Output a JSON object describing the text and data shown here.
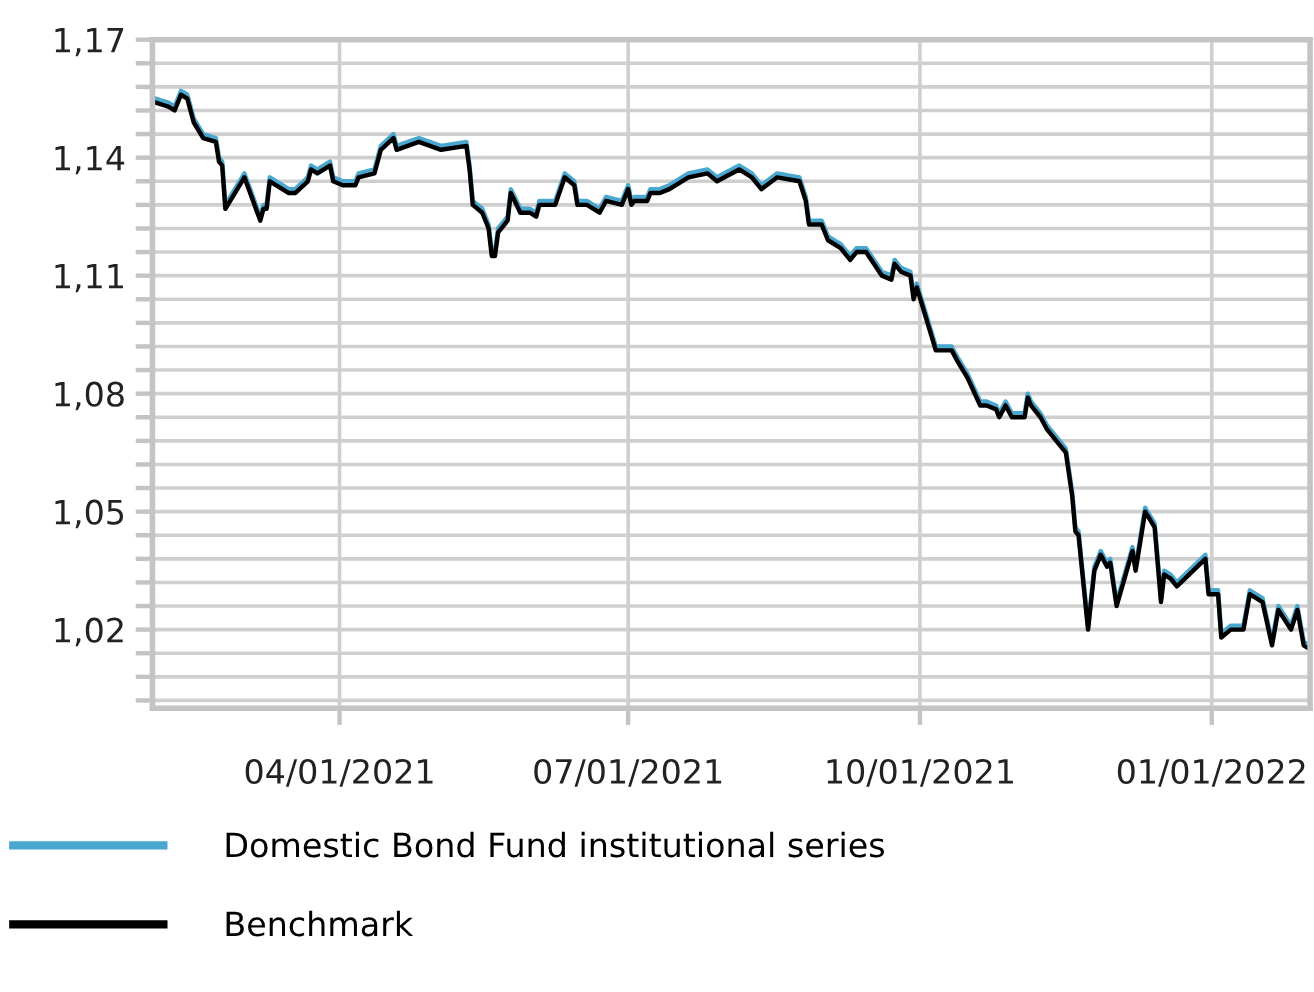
{
  "chart_data": {
    "type": "line",
    "x": [
      "2021-02-02",
      "2021-02-06",
      "2021-02-08",
      "2021-02-10",
      "2021-02-12",
      "2021-02-14",
      "2021-02-17",
      "2021-02-21",
      "2021-02-22",
      "2021-02-23",
      "2021-02-24",
      "2021-03-02",
      "2021-03-07",
      "2021-03-08",
      "2021-03-09",
      "2021-03-10",
      "2021-03-16",
      "2021-03-18",
      "2021-03-22",
      "2021-03-23",
      "2021-03-25",
      "2021-03-29",
      "2021-03-30",
      "2021-04-02",
      "2021-04-06",
      "2021-04-07",
      "2021-04-12",
      "2021-04-14",
      "2021-04-18",
      "2021-04-19",
      "2021-04-26",
      "2021-05-03",
      "2021-05-11",
      "2021-05-12",
      "2021-05-13",
      "2021-05-16",
      "2021-05-18",
      "2021-05-19",
      "2021-05-20",
      "2021-05-21",
      "2021-05-24",
      "2021-05-25",
      "2021-05-28",
      "2021-05-31",
      "2021-06-02",
      "2021-06-03",
      "2021-06-08",
      "2021-06-11",
      "2021-06-14",
      "2021-06-15",
      "2021-06-18",
      "2021-06-22",
      "2021-06-24",
      "2021-06-29",
      "2021-07-01",
      "2021-07-02",
      "2021-07-03",
      "2021-07-07",
      "2021-07-08",
      "2021-07-11",
      "2021-07-14",
      "2021-07-20",
      "2021-07-26",
      "2021-07-29",
      "2021-08-05",
      "2021-08-09",
      "2021-08-12",
      "2021-08-17",
      "2021-08-24",
      "2021-08-26",
      "2021-08-27",
      "2021-08-31",
      "2021-09-02",
      "2021-09-06",
      "2021-09-09",
      "2021-09-11",
      "2021-09-14",
      "2021-09-19",
      "2021-09-22",
      "2021-09-23",
      "2021-09-25",
      "2021-09-28",
      "2021-09-29",
      "2021-09-30",
      "2021-10-03",
      "2021-10-06",
      "2021-10-11",
      "2021-10-13",
      "2021-10-16",
      "2021-10-20",
      "2021-10-22",
      "2021-10-25",
      "2021-10-26",
      "2021-10-28",
      "2021-10-30",
      "2021-11-03",
      "2021-11-04",
      "2021-11-05",
      "2021-11-08",
      "2021-11-10",
      "2021-11-16",
      "2021-11-18",
      "2021-11-19",
      "2021-11-20",
      "2021-11-23",
      "2021-11-25",
      "2021-11-27",
      "2021-11-29",
      "2021-11-30",
      "2021-12-02",
      "2021-12-07",
      "2021-12-08",
      "2021-12-11",
      "2021-12-14",
      "2021-12-16",
      "2021-12-17",
      "2021-12-19",
      "2021-12-21",
      "2021-12-30",
      "2021-12-31",
      "2022-01-03",
      "2022-01-04",
      "2022-01-07",
      "2022-01-11",
      "2022-01-13",
      "2022-01-17",
      "2022-01-20",
      "2022-01-22",
      "2022-01-26",
      "2022-01-28",
      "2022-01-30",
      "2022-02-01"
    ],
    "series": [
      {
        "name": "Domestic Bond Fund institutional series",
        "color": "#4aa8d0",
        "values": [
          1.155,
          1.154,
          1.153,
          1.157,
          1.156,
          1.15,
          1.146,
          1.145,
          1.14,
          1.139,
          1.128,
          1.136,
          1.125,
          1.128,
          1.128,
          1.135,
          1.132,
          1.132,
          1.135,
          1.138,
          1.137,
          1.139,
          1.135,
          1.134,
          1.134,
          1.136,
          1.137,
          1.143,
          1.146,
          1.143,
          1.145,
          1.143,
          1.144,
          1.138,
          1.129,
          1.127,
          1.123,
          1.116,
          1.116,
          1.122,
          1.125,
          1.132,
          1.127,
          1.127,
          1.126,
          1.129,
          1.129,
          1.136,
          1.134,
          1.129,
          1.129,
          1.127,
          1.13,
          1.129,
          1.133,
          1.129,
          1.13,
          1.13,
          1.132,
          1.132,
          1.133,
          1.136,
          1.137,
          1.135,
          1.138,
          1.136,
          1.133,
          1.136,
          1.135,
          1.13,
          1.124,
          1.124,
          1.12,
          1.118,
          1.115,
          1.117,
          1.117,
          1.111,
          1.11,
          1.114,
          1.112,
          1.111,
          1.105,
          1.108,
          1.1,
          1.092,
          1.092,
          1.089,
          1.085,
          1.078,
          1.078,
          1.077,
          1.075,
          1.078,
          1.075,
          1.075,
          1.08,
          1.078,
          1.075,
          1.072,
          1.066,
          1.055,
          1.046,
          1.045,
          1.021,
          1.036,
          1.04,
          1.037,
          1.038,
          1.027,
          1.041,
          1.036,
          1.051,
          1.047,
          1.028,
          1.035,
          1.034,
          1.032,
          1.039,
          1.03,
          1.03,
          1.019,
          1.021,
          1.021,
          1.03,
          1.028,
          1.017,
          1.026,
          1.021,
          1.026,
          1.017,
          1.016
        ]
      },
      {
        "name": "Benchmark",
        "color": "#000000",
        "values": [
          1.154,
          1.153,
          1.152,
          1.156,
          1.155,
          1.149,
          1.145,
          1.144,
          1.139,
          1.138,
          1.127,
          1.135,
          1.124,
          1.127,
          1.127,
          1.134,
          1.131,
          1.131,
          1.134,
          1.137,
          1.136,
          1.138,
          1.134,
          1.133,
          1.133,
          1.135,
          1.136,
          1.142,
          1.145,
          1.142,
          1.144,
          1.142,
          1.143,
          1.137,
          1.128,
          1.126,
          1.122,
          1.115,
          1.115,
          1.121,
          1.124,
          1.131,
          1.126,
          1.126,
          1.125,
          1.128,
          1.128,
          1.135,
          1.133,
          1.128,
          1.128,
          1.126,
          1.129,
          1.128,
          1.132,
          1.128,
          1.129,
          1.129,
          1.131,
          1.131,
          1.132,
          1.135,
          1.136,
          1.134,
          1.137,
          1.135,
          1.132,
          1.135,
          1.134,
          1.129,
          1.123,
          1.123,
          1.119,
          1.117,
          1.114,
          1.116,
          1.116,
          1.11,
          1.109,
          1.113,
          1.111,
          1.11,
          1.104,
          1.107,
          1.099,
          1.091,
          1.091,
          1.088,
          1.084,
          1.077,
          1.077,
          1.076,
          1.074,
          1.077,
          1.074,
          1.074,
          1.079,
          1.077,
          1.074,
          1.071,
          1.065,
          1.054,
          1.045,
          1.044,
          1.02,
          1.035,
          1.039,
          1.036,
          1.037,
          1.026,
          1.04,
          1.035,
          1.05,
          1.046,
          1.027,
          1.034,
          1.033,
          1.031,
          1.038,
          1.029,
          1.029,
          1.018,
          1.02,
          1.02,
          1.029,
          1.027,
          1.016,
          1.025,
          1.02,
          1.025,
          1.016,
          1.015
        ]
      }
    ],
    "xlim": [
      "2021-02-01",
      "2022-02-01"
    ],
    "xticks": [
      {
        "value": "2021-04-01",
        "label": "04/01/2021"
      },
      {
        "value": "2021-07-01",
        "label": "07/01/2021"
      },
      {
        "value": "2021-10-01",
        "label": "10/01/2021"
      },
      {
        "value": "2022-01-01",
        "label": "01/01/2022"
      }
    ],
    "ylim": [
      1.0,
      1.17
    ],
    "yticks": [
      {
        "value": 1.002,
        "label": null
      },
      {
        "value": 1.008,
        "label": null
      },
      {
        "value": 1.014,
        "label": null
      },
      {
        "value": 1.02,
        "label": "1,02"
      },
      {
        "value": 1.026,
        "label": null
      },
      {
        "value": 1.032,
        "label": null
      },
      {
        "value": 1.038,
        "label": null
      },
      {
        "value": 1.044,
        "label": null
      },
      {
        "value": 1.05,
        "label": "1,05"
      },
      {
        "value": 1.056,
        "label": null
      },
      {
        "value": 1.062,
        "label": null
      },
      {
        "value": 1.068,
        "label": null
      },
      {
        "value": 1.074,
        "label": null
      },
      {
        "value": 1.08,
        "label": "1,08"
      },
      {
        "value": 1.086,
        "label": null
      },
      {
        "value": 1.092,
        "label": null
      },
      {
        "value": 1.098,
        "label": null
      },
      {
        "value": 1.104,
        "label": null
      },
      {
        "value": 1.11,
        "label": "1,11"
      },
      {
        "value": 1.116,
        "label": null
      },
      {
        "value": 1.122,
        "label": null
      },
      {
        "value": 1.128,
        "label": null
      },
      {
        "value": 1.134,
        "label": null
      },
      {
        "value": 1.14,
        "label": "1,14"
      },
      {
        "value": 1.146,
        "label": null
      },
      {
        "value": 1.152,
        "label": null
      },
      {
        "value": 1.158,
        "label": null
      },
      {
        "value": 1.164,
        "label": null
      },
      {
        "value": 1.17,
        "label": "1,17"
      }
    ],
    "grid": true,
    "legend": "bottom",
    "marker": "none",
    "line_style": "solid"
  }
}
